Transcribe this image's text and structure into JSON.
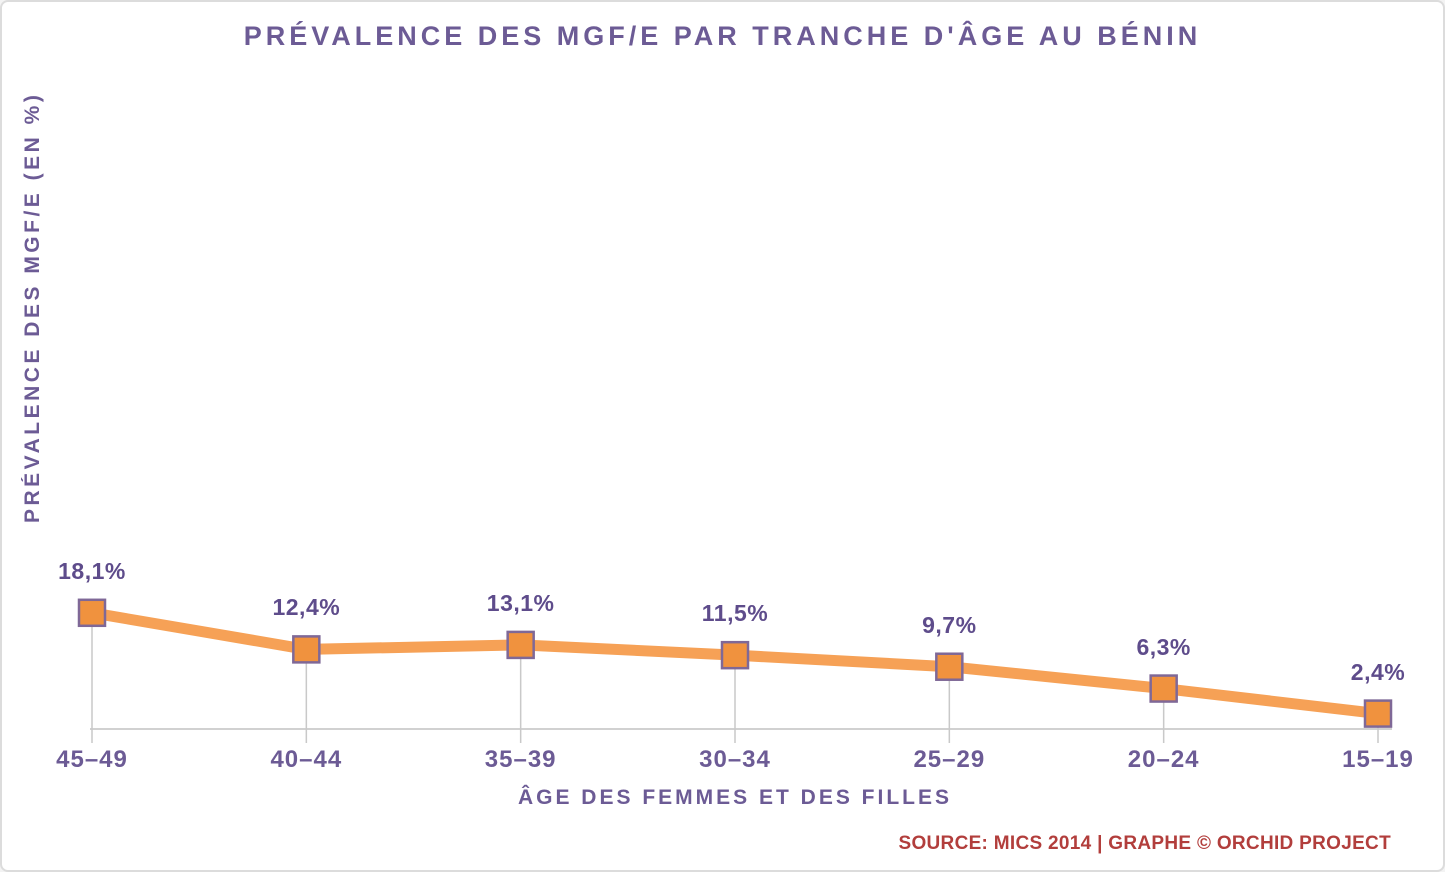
{
  "chart_data": {
    "type": "line",
    "title": "PRÉVALENCE DES MGF/E PAR TRANCHE D'ÂGE AU BÉNIN",
    "xlabel": "ÂGE DES FEMMES ET DES FILLES",
    "ylabel": "PRÉVALENCE DES MGF/E (EN %)",
    "categories": [
      "45–49",
      "40–44",
      "35–39",
      "30–34",
      "25–29",
      "20–24",
      "15–19"
    ],
    "values": [
      18.1,
      12.4,
      13.1,
      11.5,
      9.7,
      6.3,
      2.4
    ],
    "value_labels": [
      "18,1%",
      "12,4%",
      "13,1%",
      "11,5%",
      "9,7%",
      "6,3%",
      "2,4%"
    ],
    "series_name": "Prévalence des MGF/E",
    "ylim": [
      0,
      100
    ],
    "grid": false,
    "legend": "none",
    "marker_shape": "square",
    "source": "SOURCE: MICS 2014 | GRAPHE © ORCHID PROJECT",
    "colors": {
      "text_purple": "#6C5B95",
      "label_purple": "#5E4C8B",
      "line_orange": "#F6A156",
      "marker_fill": "#F0923E",
      "marker_border": "#7F6897",
      "axis_gray": "#C2C2C2",
      "drop_gray": "#C9C9C9",
      "source_red": "#B23E3C"
    }
  }
}
